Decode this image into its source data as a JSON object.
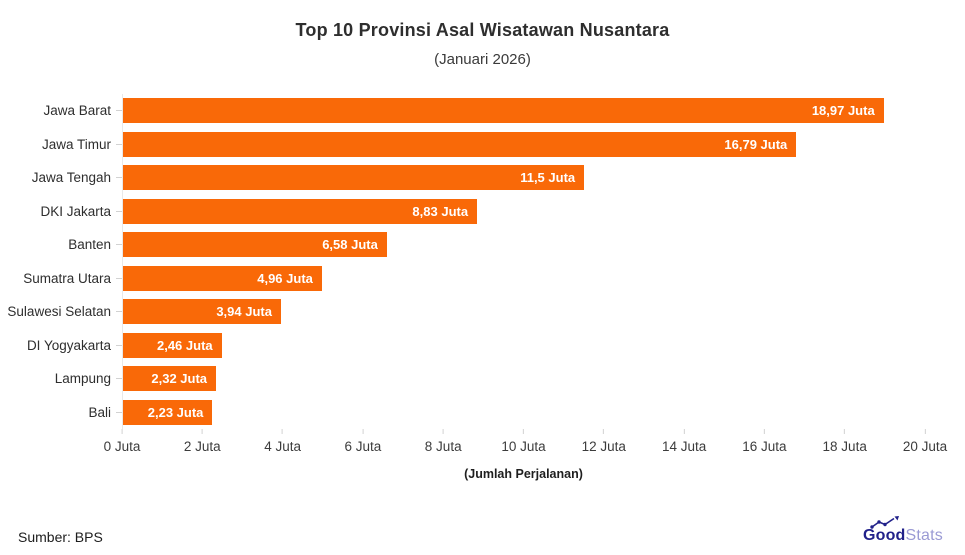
{
  "header": {
    "title": "Top 10 Provinsi Asal Wisatawan Nusantara",
    "subtitle": "(Januari 2026)"
  },
  "chart_data": {
    "type": "bar",
    "orientation": "horizontal",
    "title": "Top 10 Provinsi Asal Wisatawan Nusantara",
    "subtitle": "(Januari 2026)",
    "categories": [
      "Jawa Barat",
      "Jawa Timur",
      "Jawa Tengah",
      "DKI Jakarta",
      "Banten",
      "Sumatra Utara",
      "Sulawesi Selatan",
      "DI Yogyakarta",
      "Lampung",
      "Bali"
    ],
    "values": [
      18.97,
      16.79,
      11.5,
      8.83,
      6.58,
      4.96,
      3.94,
      2.46,
      2.32,
      2.23
    ],
    "value_labels": [
      "18,97 Juta",
      "16,79 Juta",
      "11,5 Juta",
      "8,83 Juta",
      "6,58 Juta",
      "4,96 Juta",
      "3,94 Juta",
      "2,46 Juta",
      "2,32 Juta",
      "2,23 Juta"
    ],
    "xlabel": "(Jumlah Perjalanan)",
    "x_ticks": [
      0,
      2,
      4,
      6,
      8,
      10,
      12,
      14,
      16,
      18,
      20
    ],
    "x_tick_labels": [
      "0 Juta",
      "2 Juta",
      "4 Juta",
      "6 Juta",
      "8 Juta",
      "10 Juta",
      "12 Juta",
      "14 Juta",
      "16 Juta",
      "18 Juta",
      "20 Juta"
    ],
    "xlim": [
      0,
      20
    ],
    "bar_color": "#F96908",
    "grid": false,
    "legend": false
  },
  "footer": {
    "source": "Sumber: BPS",
    "brand_bold": "Good",
    "brand_light": "Stats",
    "brand_icon": "trend-up-icon",
    "brand_color_bold": "#21218a",
    "brand_color_light": "#9a9ad4"
  }
}
